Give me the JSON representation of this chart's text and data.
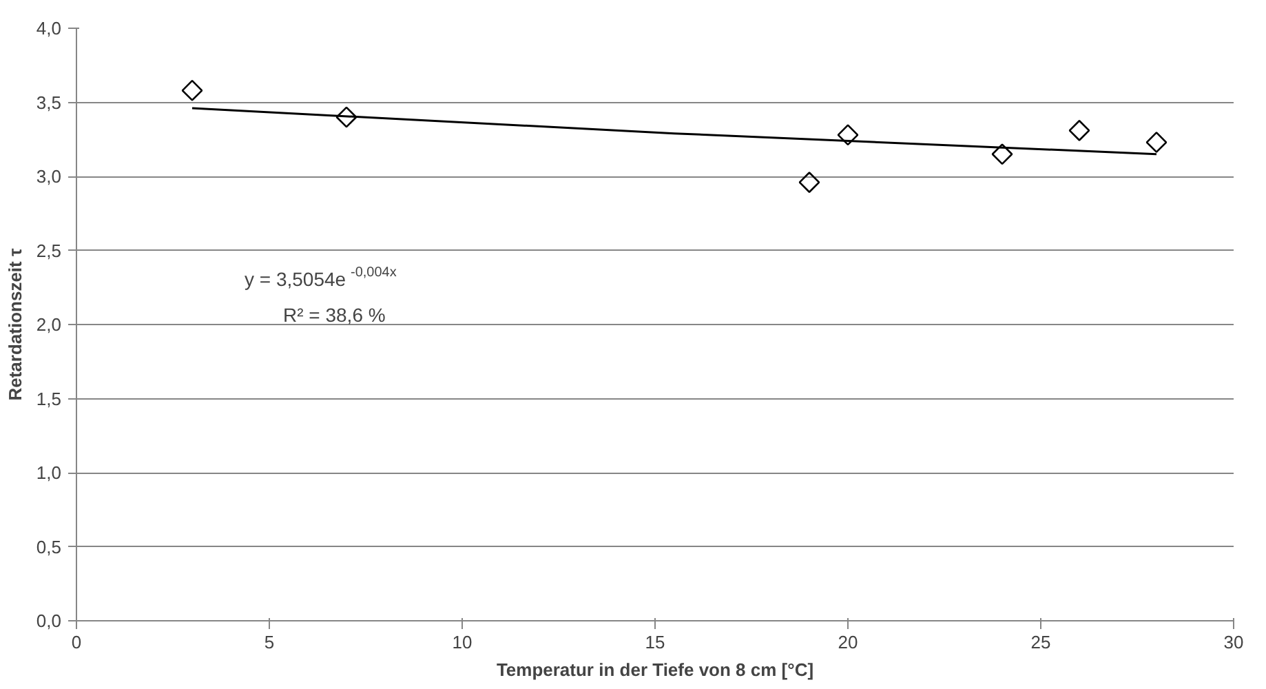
{
  "chart_data": {
    "type": "scatter",
    "xlabel": "Temperatur in der Tiefe von 8 cm [°C]",
    "ylabel": "Retardationszeit τ",
    "xlim": [
      0,
      30
    ],
    "xticks": [
      0,
      5,
      10,
      15,
      20,
      25,
      30
    ],
    "ylim": [
      0,
      4
    ],
    "yticks": [
      {
        "value": 0,
        "label": "0,0"
      },
      {
        "value": 0.5,
        "label": "0,5"
      },
      {
        "value": 1,
        "label": "1,0"
      },
      {
        "value": 1.5,
        "label": "1,5"
      },
      {
        "value": 2,
        "label": "2,0"
      },
      {
        "value": 2.5,
        "label": "2,5"
      },
      {
        "value": 3,
        "label": "3,0"
      },
      {
        "value": 3.5,
        "label": "3,5"
      },
      {
        "value": 4,
        "label": "4,0"
      }
    ],
    "grid": "y",
    "marker": "diamond",
    "series": [
      {
        "color": "#000000",
        "x": [
          3,
          7,
          19,
          20,
          24,
          26,
          28
        ],
        "values": [
          3.58,
          3.4,
          2.96,
          3.28,
          3.15,
          3.31,
          3.23
        ]
      },
      {
        "type": "line",
        "marker": "none",
        "color": "#000000",
        "x": [
          3,
          15.5,
          28
        ],
        "values": [
          3.46,
          3.29,
          3.15
        ]
      }
    ],
    "annotations": [
      "y = 3,5054e$^{-0,004x}$",
      "R² = 38,6 %"
    ]
  }
}
